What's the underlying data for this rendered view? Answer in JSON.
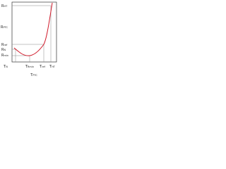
{
  "axes": {
    "y_title": {
      "symbol": "R",
      "sub": "PTC"
    },
    "x_title": {
      "symbol": "T",
      "sub": "PTC"
    }
  },
  "y_labels": [
    {
      "symbol": "R",
      "sub": "HT"
    },
    {
      "symbol": "R",
      "sub": "ref"
    },
    {
      "symbol": "R",
      "sub": "N"
    },
    {
      "symbol": "R",
      "sub": "min"
    }
  ],
  "x_labels": [
    {
      "symbol": "T",
      "sub": "N"
    },
    {
      "symbol": "T",
      "sub": "Rmin"
    },
    {
      "symbol": "T",
      "sub": "ref"
    },
    {
      "symbol": "T",
      "sub": "HT"
    }
  ]
}
